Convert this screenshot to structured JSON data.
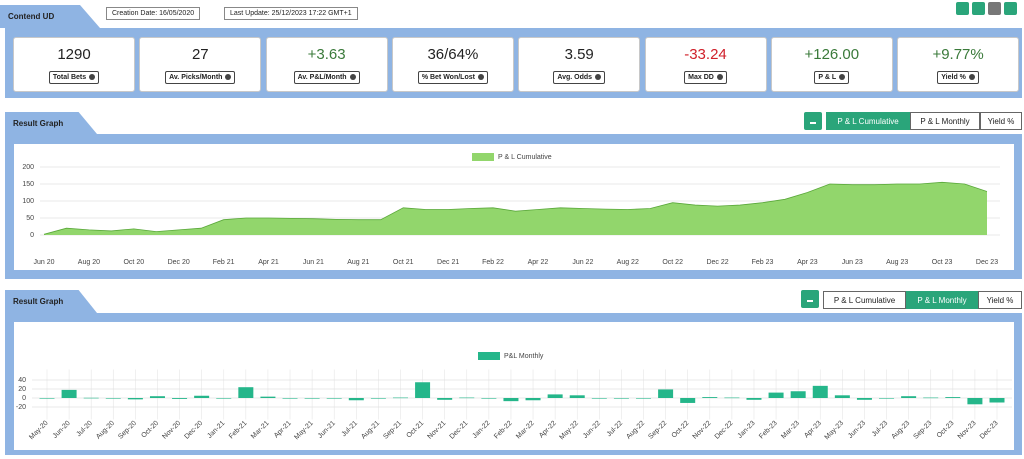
{
  "header": {
    "title": "Contend UD",
    "creation_date": "Creation Date: 16/05/2020",
    "last_update": "Last Update: 25/12/2023 17:22 GMT+1"
  },
  "stats": [
    {
      "value": "1290",
      "label": "Total Bets",
      "color": "#222222"
    },
    {
      "value": "27",
      "label": "Av. Picks/Month",
      "color": "#222222"
    },
    {
      "value": "+3.63",
      "label": "Av. P&L/Month",
      "color": "#3a7a3a"
    },
    {
      "value": "36/64%",
      "label": "% Bet Won/Lost",
      "color": "#222222"
    },
    {
      "value": "3.59",
      "label": "Avg. Odds",
      "color": "#222222"
    },
    {
      "value": "-33.24",
      "label": "Max DD",
      "color": "#d0202a"
    },
    {
      "value": "+126.00",
      "label": "P & L",
      "color": "#3a7a3a"
    },
    {
      "value": "+9.77%",
      "label": "Yield %",
      "color": "#3a7a3a"
    }
  ],
  "sections": [
    {
      "title": "Result Graph",
      "buttons": [
        "P & L Cumulative",
        "P & L Monthly",
        "Yield %"
      ],
      "active": 0
    },
    {
      "title": "Result Graph",
      "buttons": [
        "P & L Cumulative",
        "P & L Monthly",
        "Yield %"
      ],
      "active": 1
    }
  ],
  "chart_data": [
    {
      "type": "area",
      "categories": [
        "Jun 20",
        null,
        "Aug 20",
        null,
        "Oct 20",
        null,
        "Dec 20",
        null,
        "Feb 21",
        null,
        "Apr 21",
        null,
        "Jun 21",
        null,
        "Aug 21",
        null,
        "Oct 21",
        null,
        "Dec 21",
        null,
        "Feb 22",
        null,
        "Apr 22",
        null,
        "Jun 22",
        null,
        "Aug 22",
        null,
        "Oct 22",
        null,
        "Dec 22",
        null,
        "Feb 23",
        null,
        "Apr 23",
        null,
        "Jun 23",
        null,
        "Aug 23",
        null,
        "Oct 23",
        null,
        "Dec 23"
      ],
      "series": [
        {
          "name": "P & L Cumulative",
          "color": "#92d66c",
          "values": [
            2,
            20,
            15,
            12,
            18,
            10,
            15,
            20,
            45,
            50,
            50,
            49,
            48,
            46,
            45,
            45,
            80,
            75,
            75,
            78,
            80,
            70,
            75,
            80,
            78,
            76,
            75,
            78,
            95,
            88,
            85,
            88,
            95,
            105,
            125,
            150,
            148,
            148,
            150,
            150,
            155,
            150,
            128
          ]
        }
      ],
      "ylim": [
        -10,
        210
      ],
      "yticks": [
        0,
        50,
        100,
        150,
        200
      ],
      "grid": true
    },
    {
      "type": "bar",
      "categories": [
        "May-20",
        "Jun-20",
        "Jul-20",
        "Aug-20",
        "Sep-20",
        "Oct-20",
        "Nov-20",
        "Dec-20",
        "Jan-21",
        "Feb-21",
        "Mar-21",
        "Apr-21",
        "May-21",
        "Jun-21",
        "Jul-21",
        "Aug-21",
        "Sep-21",
        "Oct-21",
        "Nov-21",
        "Dec-21",
        "Jan-22",
        "Feb-22",
        "Mar-22",
        "Apr-22",
        "May-22",
        "Jun-22",
        "Jul-22",
        "Aug-22",
        "Sep-22",
        "Oct-22",
        "Nov-22",
        "Dec-22",
        "Jan-23",
        "Feb-23",
        "Mar-23",
        "Apr-23",
        "May-23",
        "Jun-23",
        "Jul-23",
        "Aug-23",
        "Sep-23",
        "Oct-23",
        "Nov-23",
        "Dec-23"
      ],
      "series": [
        {
          "name": "P&L Monthly",
          "color": "#25b68a",
          "values": [
            -1,
            18,
            0.5,
            0,
            -3,
            4,
            -2,
            5,
            0,
            24,
            3,
            -1,
            0,
            -1,
            -5,
            -1,
            1,
            35,
            -4,
            1,
            -1,
            -7,
            -5,
            8,
            6,
            -1,
            0,
            0,
            19,
            -11,
            2,
            1,
            -4,
            12,
            15,
            27,
            6,
            -4,
            0,
            4,
            1,
            2,
            -14,
            -10
          ]
        }
      ],
      "ylim": [
        -30,
        50
      ],
      "yticks": [
        -20,
        0,
        20,
        40
      ],
      "grid": true
    }
  ]
}
